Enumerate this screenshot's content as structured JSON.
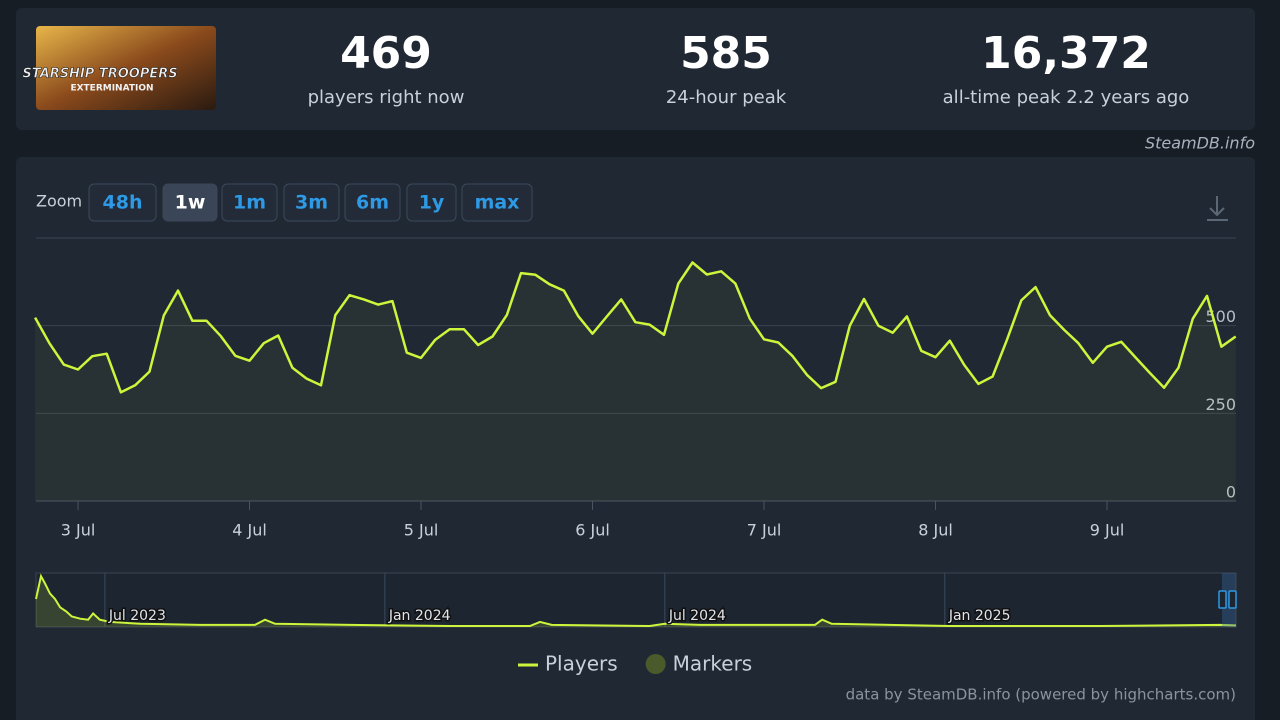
{
  "header": {
    "logo_text": [
      "STARSHIP TROOPERS",
      "EXTERMINATION"
    ],
    "stats": [
      {
        "number": "469",
        "label": "players right now"
      },
      {
        "number": "585",
        "label": "24-hour peak"
      },
      {
        "number": "16,372",
        "label": "all-time peak 2.2 years ago"
      }
    ],
    "watermark": "SteamDB.info"
  },
  "toolbar": {
    "zoom_label": "Zoom",
    "zoom_options": [
      "48h",
      "1w",
      "1m",
      "3m",
      "6m",
      "1y",
      "max"
    ],
    "selected_index": 1
  },
  "chart_data": [
    {
      "type": "line",
      "x": [
        2.75,
        2.833,
        2.917,
        3,
        3.083,
        3.167,
        3.25,
        3.333,
        3.417,
        3.5,
        3.583,
        3.667,
        3.75,
        3.833,
        3.917,
        4,
        4.083,
        4.167,
        4.25,
        4.333,
        4.417,
        4.5,
        4.583,
        4.667,
        4.75,
        4.833,
        4.917,
        5,
        5.083,
        5.167,
        5.25,
        5.333,
        5.417,
        5.5,
        5.583,
        5.667,
        5.75,
        5.833,
        5.917,
        6,
        6.083,
        6.167,
        6.25,
        6.333,
        6.417,
        6.5,
        6.583,
        6.667,
        6.75,
        6.833,
        6.917,
        7,
        7.083,
        7.167,
        7.25,
        7.333,
        7.417,
        7.5,
        7.583,
        7.667,
        7.75,
        7.833,
        7.917,
        8,
        8.083,
        8.167,
        8.25,
        8.333,
        8.417,
        8.5,
        8.583,
        8.667,
        8.75,
        8.833,
        8.917,
        9,
        9.083,
        9.167,
        9.25,
        9.333,
        9.417,
        9.5,
        9.583,
        9.667,
        9.75
      ],
      "series": [
        {
          "name": "Players",
          "color": "#cdf53c",
          "values": [
            523,
            450,
            389,
            375,
            413,
            420,
            310,
            330,
            369,
            529,
            600,
            514,
            514,
            470,
            414,
            400,
            450,
            472,
            380,
            349,
            330,
            530,
            587,
            575,
            560,
            570,
            423,
            408,
            460,
            490,
            490,
            445,
            469,
            530,
            650,
            645,
            618,
            600,
            527,
            477,
            526,
            575,
            510,
            503,
            474,
            620,
            680,
            646,
            655,
            620,
            520,
            461,
            452,
            413,
            360,
            322,
            340,
            500,
            576,
            500,
            480,
            526,
            428,
            410,
            457,
            388,
            334,
            355,
            460,
            572,
            610,
            530,
            488,
            450,
            394,
            440,
            454,
            409,
            365,
            323,
            380,
            520,
            585,
            440,
            469
          ]
        },
        {
          "name": "Markers",
          "color": "#4a5a2a"
        }
      ],
      "xlim": [
        2.755,
        9.752
      ],
      "xticks": [
        {
          "value": 3,
          "label": "3 Jul"
        },
        {
          "value": 4,
          "label": "4 Jul"
        },
        {
          "value": 5,
          "label": "5 Jul"
        },
        {
          "value": 6,
          "label": "6 Jul"
        },
        {
          "value": 7,
          "label": "7 Jul"
        },
        {
          "value": 8,
          "label": "8 Jul"
        },
        {
          "value": 9,
          "label": "9 Jul"
        }
      ],
      "ylim": [
        0,
        750
      ],
      "yticks": [
        0,
        250,
        500
      ],
      "grid": true,
      "legend": "bottom"
    },
    {
      "type": "area",
      "x": [
        2023.377,
        2023.386,
        2023.393,
        2023.402,
        2023.411,
        2023.42,
        2023.431,
        2023.441,
        2023.456,
        2023.47,
        2023.479,
        2023.491,
        2023.509,
        2023.563,
        2023.67,
        2023.768,
        2023.786,
        2023.804,
        2023.938,
        2024.116,
        2024.259,
        2024.277,
        2024.298,
        2024.473,
        2024.5,
        2024.563,
        2024.768,
        2024.781,
        2024.798,
        2025.009,
        2025.277,
        2025.491,
        2025.52
      ],
      "values": [
        8800,
        16000,
        13700,
        10500,
        8800,
        6200,
        4900,
        3300,
        2600,
        2300,
        4250,
        2300,
        1600,
        1000,
        650,
        650,
        2300,
        1000,
        650,
        330,
        330,
        1600,
        650,
        330,
        1000,
        650,
        650,
        2300,
        1000,
        330,
        330,
        650,
        500
      ],
      "color": "#cdf53c",
      "xlim": [
        2023.377,
        2025.52
      ],
      "xticks": [
        {
          "value": 2023.5,
          "label": "Jul 2023"
        },
        {
          "value": 2024,
          "label": "Jan 2024"
        },
        {
          "value": 2024.5,
          "label": "Jul 2024"
        },
        {
          "value": 2025,
          "label": "Jan 2025"
        }
      ],
      "ylim": [
        0,
        17000
      ]
    }
  ],
  "credits": "data by SteamDB.info (powered by highcharts.com)"
}
